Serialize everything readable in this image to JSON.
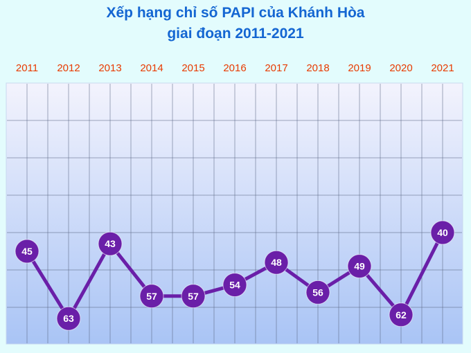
{
  "chart_data": {
    "type": "line",
    "title_line1": "Xếp hạng chỉ số PAPI của Khánh Hòa",
    "title_line2": "giai đoạn 2011-2021",
    "categories": [
      "2011",
      "2012",
      "2013",
      "2014",
      "2015",
      "2016",
      "2017",
      "2018",
      "2019",
      "2020",
      "2021"
    ],
    "values": [
      45,
      63,
      43,
      57,
      57,
      54,
      48,
      56,
      49,
      62,
      40
    ],
    "data_labels": true,
    "y_axis_shown": false,
    "grid": true,
    "colors": {
      "line": "#6a1fa8",
      "marker": "#6a1fa8",
      "label": "#ffffff",
      "year_label": "#e83a00",
      "title": "#1466d2",
      "plot_top": "#f3f3fd",
      "plot_bottom": "#a9c4f5",
      "grid": "#5a6683"
    }
  }
}
